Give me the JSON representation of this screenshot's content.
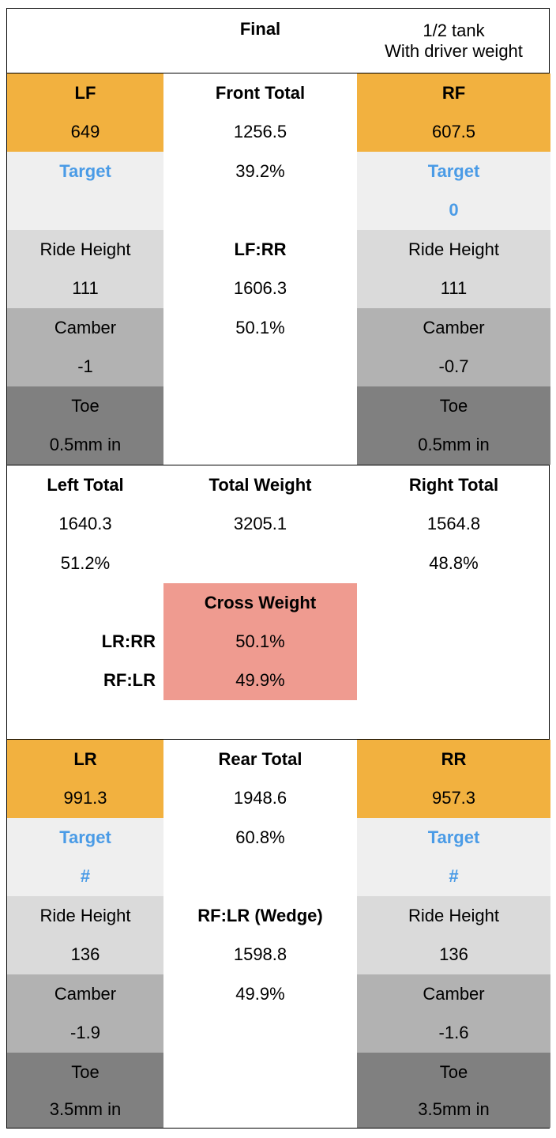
{
  "header": {
    "col2": "Final",
    "col3": "1/2 tank\nWith driver weight"
  },
  "front": {
    "lf": {
      "label": "LF",
      "value": "649",
      "target_label": "Target",
      "target_value": "",
      "ride_height_label": "Ride Height",
      "ride_height": "111",
      "camber_label": "Camber",
      "camber": "-1",
      "toe_label": "Toe",
      "toe": "0.5mm in"
    },
    "center": {
      "total_label": "Front Total",
      "total": "1256.5",
      "total_pct": "39.2%",
      "diag_label": "LF:RR",
      "diag": "1606.3",
      "diag_pct": "50.1%"
    },
    "rf": {
      "label": "RF",
      "value": "607.5",
      "target_label": "Target",
      "target_value": "0",
      "ride_height_label": "Ride Height",
      "ride_height": "111",
      "camber_label": "Camber",
      "camber": "-0.7",
      "toe_label": "Toe",
      "toe": "0.5mm in"
    }
  },
  "middle": {
    "left_total_label": "Left Total",
    "left_total": "1640.3",
    "left_pct": "51.2%",
    "total_weight_label": "Total Weight",
    "total_weight": "3205.1",
    "right_total_label": "Right Total",
    "right_total": "1564.8",
    "right_pct": "48.8%",
    "cross_weight_label": "Cross Weight",
    "lr_rr_label": "LR:RR",
    "lr_rr": "50.1%",
    "rf_lr_label": "RF:LR",
    "rf_lr": "49.9%"
  },
  "rear": {
    "lr": {
      "label": "LR",
      "value": "991.3",
      "target_label": "Target",
      "target_value": "#",
      "ride_height_label": "Ride Height",
      "ride_height": "136",
      "camber_label": "Camber",
      "camber": "-1.9",
      "toe_label": "Toe",
      "toe": "3.5mm in"
    },
    "center": {
      "total_label": "Rear Total",
      "total": "1948.6",
      "total_pct": "60.8%",
      "wedge_label": "RF:LR (Wedge)",
      "wedge": "1598.8",
      "wedge_pct": "49.9%"
    },
    "rr": {
      "label": "RR",
      "value": "957.3",
      "target_label": "Target",
      "target_value": "#",
      "ride_height_label": "Ride Height",
      "ride_height": "136",
      "camber_label": "Camber",
      "camber": "-1.6",
      "toe_label": "Toe",
      "toe": "3.5mm in"
    }
  }
}
